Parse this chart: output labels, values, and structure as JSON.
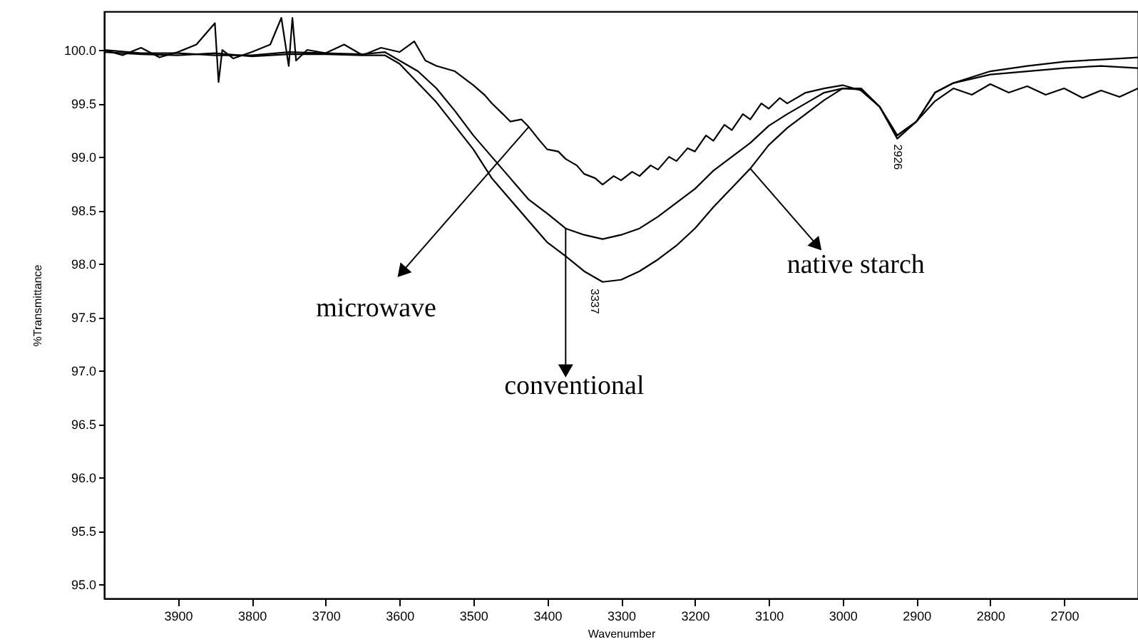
{
  "chart_data": {
    "type": "line",
    "xlabel": "Wavenumber",
    "ylabel": "%Transmittance",
    "xlim": [
      4000,
      2600
    ],
    "ylim": [
      94.87,
      100.36
    ],
    "xticks": [
      3900,
      3800,
      3700,
      3600,
      3500,
      3400,
      3300,
      3200,
      3100,
      3000,
      2900,
      2800,
      2700
    ],
    "yticks": [
      {
        "value": 95,
        "label": "95.0"
      },
      {
        "value": 95.5,
        "label": "95.5"
      },
      {
        "value": 96,
        "label": "96.0"
      },
      {
        "value": 96.5,
        "label": "96.5"
      },
      {
        "value": 97,
        "label": "97.0"
      },
      {
        "value": 97.5,
        "label": "97.5"
      },
      {
        "value": 98,
        "label": "98.0"
      },
      {
        "value": 98.5,
        "label": "98.5"
      },
      {
        "value": 99,
        "label": "99.0"
      },
      {
        "value": 99.5,
        "label": "99.5"
      },
      {
        "value": 100,
        "label": "100.0"
      }
    ],
    "grid": false,
    "marker": "none",
    "line_style": "solid",
    "series": [
      {
        "color": "#000000",
        "x": [
          4000,
          3975,
          3950,
          3925,
          3900,
          3875,
          3850,
          3845,
          3840,
          3825,
          3800,
          3775,
          3760,
          3750,
          3745,
          3740,
          3725,
          3700,
          3675,
          3650,
          3625,
          3600,
          3580,
          3565,
          3550,
          3525,
          3500,
          3485,
          3475,
          3460,
          3450,
          3435,
          3425,
          3410,
          3400,
          3385,
          3375,
          3360,
          3350,
          3335,
          3325,
          3310,
          3300,
          3285,
          3275,
          3260,
          3250,
          3235,
          3225,
          3210,
          3200,
          3185,
          3175,
          3160,
          3150,
          3135,
          3125,
          3110,
          3100,
          3085,
          3075,
          3050,
          3025,
          3000,
          2975,
          2950,
          2926,
          2900,
          2875,
          2850,
          2825,
          2800,
          2775,
          2750,
          2725,
          2700,
          2675,
          2650,
          2625,
          2600
        ],
        "values": [
          100.0,
          99.95,
          100.02,
          99.93,
          99.98,
          100.05,
          100.25,
          99.7,
          100.0,
          99.92,
          99.98,
          100.05,
          100.3,
          99.85,
          100.3,
          99.9,
          100.0,
          99.97,
          100.05,
          99.95,
          100.02,
          99.98,
          100.08,
          99.9,
          99.85,
          99.8,
          99.67,
          99.58,
          99.5,
          99.4,
          99.33,
          99.35,
          99.28,
          99.15,
          99.07,
          99.05,
          98.98,
          98.92,
          98.84,
          98.8,
          98.74,
          98.82,
          98.78,
          98.86,
          98.82,
          98.92,
          98.88,
          99.0,
          98.96,
          99.08,
          99.05,
          99.2,
          99.15,
          99.3,
          99.25,
          99.4,
          99.35,
          99.5,
          99.45,
          99.55,
          99.5,
          99.6,
          99.64,
          99.67,
          99.62,
          99.47,
          99.2,
          99.33,
          99.52,
          99.64,
          99.58,
          99.68,
          99.6,
          99.66,
          99.58,
          99.64,
          99.55,
          99.62,
          99.56,
          99.64
        ]
      },
      {
        "color": "#000000",
        "x": [
          4000,
          3950,
          3900,
          3850,
          3800,
          3750,
          3700,
          3650,
          3620,
          3600,
          3575,
          3550,
          3525,
          3500,
          3475,
          3450,
          3425,
          3400,
          3375,
          3350,
          3325,
          3300,
          3275,
          3250,
          3225,
          3200,
          3175,
          3150,
          3125,
          3100,
          3075,
          3050,
          3025,
          3000,
          2975,
          2950,
          2926,
          2900,
          2875,
          2850,
          2800,
          2750,
          2700,
          2650,
          2600
        ],
        "values": [
          100.0,
          99.97,
          99.97,
          99.95,
          99.95,
          99.98,
          99.97,
          99.96,
          99.98,
          99.9,
          99.8,
          99.64,
          99.43,
          99.2,
          99.0,
          98.8,
          98.6,
          98.47,
          98.33,
          98.27,
          98.23,
          98.27,
          98.33,
          98.44,
          98.57,
          98.7,
          98.87,
          99.0,
          99.13,
          99.29,
          99.4,
          99.5,
          99.6,
          99.64,
          99.63,
          99.47,
          99.2,
          99.33,
          99.6,
          99.69,
          99.77,
          99.8,
          99.83,
          99.85,
          99.83
        ]
      },
      {
        "color": "#000000",
        "x": [
          4000,
          3950,
          3900,
          3850,
          3800,
          3750,
          3700,
          3650,
          3620,
          3600,
          3575,
          3550,
          3525,
          3500,
          3475,
          3450,
          3425,
          3400,
          3375,
          3350,
          3325,
          3300,
          3275,
          3250,
          3225,
          3200,
          3175,
          3150,
          3125,
          3100,
          3075,
          3050,
          3025,
          3000,
          2975,
          2950,
          2926,
          2900,
          2875,
          2850,
          2800,
          2750,
          2700,
          2650,
          2600
        ],
        "values": [
          99.98,
          99.96,
          99.95,
          99.97,
          99.94,
          99.96,
          99.96,
          99.95,
          99.95,
          99.87,
          99.69,
          99.51,
          99.29,
          99.07,
          98.8,
          98.6,
          98.4,
          98.2,
          98.07,
          97.93,
          97.83,
          97.85,
          97.93,
          98.04,
          98.17,
          98.33,
          98.53,
          98.71,
          98.89,
          99.11,
          99.27,
          99.4,
          99.53,
          99.64,
          99.64,
          99.47,
          99.17,
          99.33,
          99.6,
          99.69,
          99.8,
          99.85,
          99.89,
          99.91,
          99.93
        ]
      }
    ],
    "annotations": [
      {
        "text": "microwave",
        "x": 3425,
        "y": 99.28
      },
      {
        "text": "conventional",
        "x": 3375,
        "y": 98.33
      },
      {
        "text": "native starch",
        "x": 3125,
        "y": 98.89
      },
      {
        "text": "3337",
        "x": 3337,
        "y": 97.82
      },
      {
        "text": "2926",
        "x": 2926,
        "y": 99.17
      }
    ]
  }
}
